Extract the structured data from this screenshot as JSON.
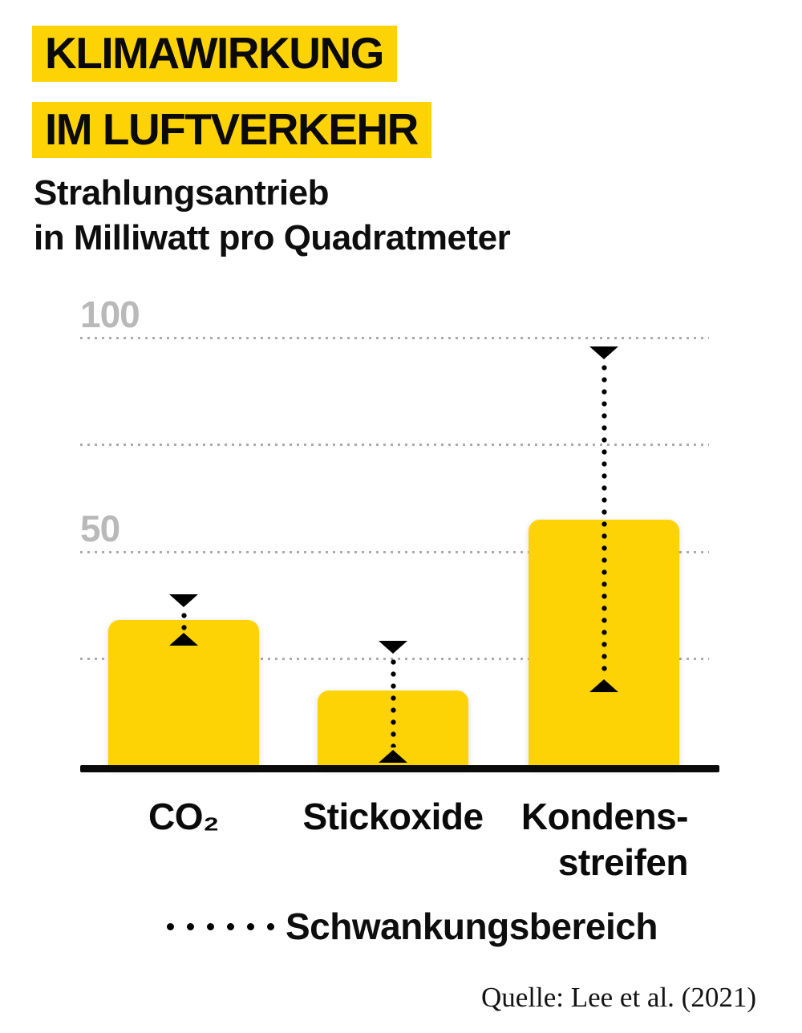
{
  "header": {
    "title_line1": "KLIMAWIRKUNG",
    "title_line2": "IM LUFTVERKEHR",
    "subtitle_line1": "Strahlungsantrieb",
    "subtitle_line2": "in Milliwatt pro Quadratmeter"
  },
  "chart_data": {
    "type": "bar",
    "title": "Klimawirkung im Luftverkehr",
    "ylabel": "Strahlungsantrieb in Milliwatt pro Quadratmeter",
    "categories": [
      "CO2",
      "Stickoxide",
      "Kondensstreifen"
    ],
    "x_display_labels": [
      "CO₂",
      "Stickoxide",
      "Kondens-\nstreifen"
    ],
    "values": [
      34,
      17.5,
      57.4
    ],
    "ranges_low_high": [
      [
        28,
        40
      ],
      [
        0.6,
        29
      ],
      [
        17,
        98
      ]
    ],
    "ylim": [
      0,
      105
    ],
    "ytick_labels": [
      {
        "value": 100,
        "label": "100"
      },
      {
        "value": 50,
        "label": "50"
      }
    ],
    "gridline_values": [
      25,
      50,
      75,
      100
    ],
    "grid": "dotted-horizontal",
    "legend_position": "bottom",
    "range_legend_label": "Schwankungsbereich",
    "bar_color": "#FDD305",
    "source": "Quelle: Lee et al. (2021)"
  },
  "legend": {
    "label": "Schwankungsbereich"
  },
  "source": {
    "text": "Quelle: Lee et al. (2021)"
  },
  "colors": {
    "accent_yellow": "#FDD305",
    "grid_gray": "#ABABAB",
    "tick_label_gray": "#B9B9B9",
    "ink_black": "#000000"
  }
}
